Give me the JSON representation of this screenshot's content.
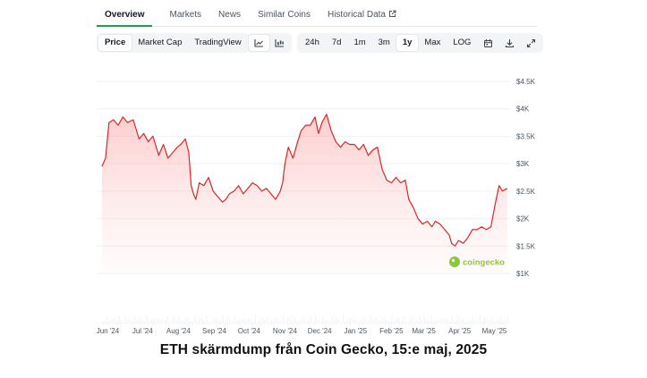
{
  "tabs": [
    {
      "label": "Overview",
      "active": true
    },
    {
      "label": "Markets"
    },
    {
      "label": "News"
    },
    {
      "label": "Similar Coins"
    },
    {
      "label": "Historical Data",
      "external_icon": "external-link-icon"
    }
  ],
  "toolbar": {
    "view_buttons": [
      "Price",
      "Market Cap",
      "TradingView"
    ],
    "active_view": "Price",
    "chart_type_icons": [
      "line-chart-icon",
      "candlestick-chart-icon"
    ],
    "ranges": [
      "24h",
      "7d",
      "1m",
      "3m",
      "1y",
      "Max",
      "LOG"
    ],
    "active_range": "1y",
    "tool_icons": [
      "calendar-icon",
      "download-icon",
      "expand-icon"
    ]
  },
  "watermark": {
    "text": "coingecko",
    "icon": "coingecko-logo-icon"
  },
  "caption": "ETH skärmdump från Coin Gecko, 15:e maj, 2025",
  "colors": {
    "line": "#dc2626",
    "area_fill": "#fca5a5",
    "active_tab": "#16a34a"
  },
  "chart_data": {
    "type": "area",
    "y_ticks": [
      "$4.5K",
      "$4K",
      "$3.5K",
      "$3K",
      "$2.5K",
      "$2K",
      "$1.5K",
      "$1K"
    ],
    "y_tick_values": [
      4500,
      4000,
      3500,
      3000,
      2500,
      2000,
      1500,
      1000
    ],
    "ylim": [
      1000,
      4500
    ],
    "x_ticks": [
      "Jun '24",
      "Jul '24",
      "Aug '24",
      "Sep '24",
      "Oct '24",
      "Nov '24",
      "Dec '24",
      "Jan '25",
      "Feb '25",
      "Mar '25",
      "Apr '25",
      "May '25"
    ],
    "x_tick_index": [
      5,
      35,
      66,
      97,
      127,
      158,
      188,
      219,
      250,
      278,
      309,
      339
    ],
    "x_count": 352,
    "grid": true,
    "legend": "none",
    "series": [
      {
        "values": [
          [
            0,
            2950
          ],
          [
            3,
            3100
          ],
          [
            6,
            3750
          ],
          [
            10,
            3800
          ],
          [
            14,
            3700
          ],
          [
            18,
            3850
          ],
          [
            22,
            3750
          ],
          [
            27,
            3800
          ],
          [
            32,
            3450
          ],
          [
            36,
            3550
          ],
          [
            40,
            3400
          ],
          [
            44,
            3500
          ],
          [
            49,
            3150
          ],
          [
            53,
            3350
          ],
          [
            57,
            3100
          ],
          [
            61,
            3200
          ],
          [
            65,
            3300
          ],
          [
            68,
            3350
          ],
          [
            72,
            3450
          ],
          [
            75,
            3200
          ],
          [
            77,
            2600
          ],
          [
            79,
            2450
          ],
          [
            81,
            2350
          ],
          [
            84,
            2650
          ],
          [
            88,
            2600
          ],
          [
            92,
            2750
          ],
          [
            96,
            2500
          ],
          [
            100,
            2400
          ],
          [
            104,
            2300
          ],
          [
            107,
            2350
          ],
          [
            110,
            2450
          ],
          [
            114,
            2500
          ],
          [
            118,
            2600
          ],
          [
            122,
            2450
          ],
          [
            126,
            2550
          ],
          [
            130,
            2650
          ],
          [
            134,
            2600
          ],
          [
            138,
            2500
          ],
          [
            142,
            2550
          ],
          [
            146,
            2450
          ],
          [
            150,
            2350
          ],
          [
            154,
            2500
          ],
          [
            156,
            2650
          ],
          [
            158,
            3000
          ],
          [
            161,
            3300
          ],
          [
            165,
            3100
          ],
          [
            169,
            3400
          ],
          [
            172,
            3600
          ],
          [
            176,
            3700
          ],
          [
            180,
            3700
          ],
          [
            184,
            3850
          ],
          [
            187,
            3550
          ],
          [
            190,
            3750
          ],
          [
            194,
            3900
          ],
          [
            198,
            3600
          ],
          [
            202,
            3400
          ],
          [
            206,
            3300
          ],
          [
            210,
            3400
          ],
          [
            214,
            3350
          ],
          [
            218,
            3350
          ],
          [
            222,
            3250
          ],
          [
            226,
            3350
          ],
          [
            230,
            3150
          ],
          [
            234,
            3250
          ],
          [
            238,
            3300
          ],
          [
            242,
            2900
          ],
          [
            246,
            2700
          ],
          [
            250,
            2650
          ],
          [
            254,
            2750
          ],
          [
            258,
            2650
          ],
          [
            262,
            2700
          ],
          [
            265,
            2350
          ],
          [
            269,
            2200
          ],
          [
            273,
            2000
          ],
          [
            277,
            1900
          ],
          [
            281,
            1950
          ],
          [
            285,
            1850
          ],
          [
            288,
            1950
          ],
          [
            292,
            1900
          ],
          [
            296,
            1800
          ],
          [
            300,
            1700
          ],
          [
            302,
            1550
          ],
          [
            305,
            1500
          ],
          [
            308,
            1600
          ],
          [
            312,
            1550
          ],
          [
            316,
            1650
          ],
          [
            320,
            1800
          ],
          [
            324,
            1800
          ],
          [
            328,
            1850
          ],
          [
            332,
            1800
          ],
          [
            336,
            1850
          ],
          [
            340,
            2300
          ],
          [
            343,
            2600
          ],
          [
            346,
            2500
          ],
          [
            350,
            2550
          ]
        ]
      }
    ]
  }
}
